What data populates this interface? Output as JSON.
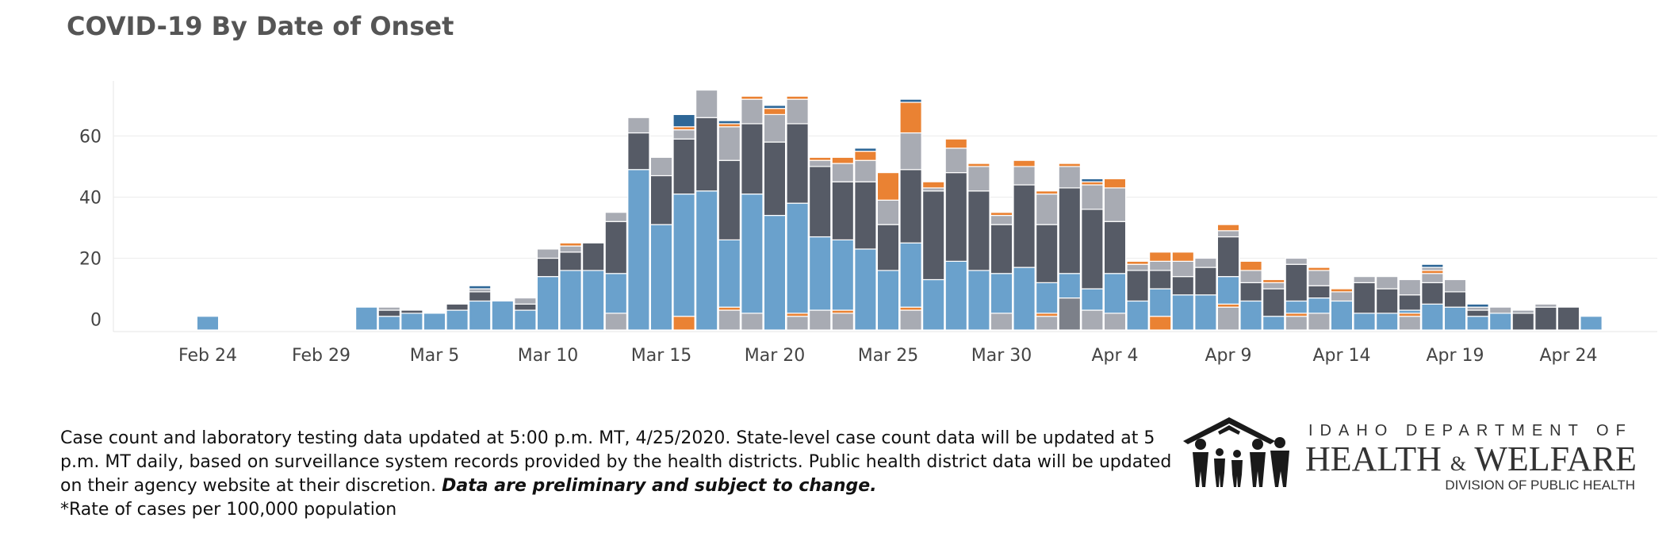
{
  "title": "COVID-19 By Date of Onset",
  "colors": {
    "blue_light": "#6aa1cc",
    "charcoal": "#565b66",
    "gray_light": "#a8abb3",
    "orange": "#ea8233",
    "blue_dark": "#2e6797",
    "gray_mid": "#7c8089"
  },
  "chart_data": {
    "type": "bar",
    "stacked": true,
    "title": "COVID-19 By Date of Onset",
    "xlabel": "",
    "ylabel": "",
    "ylim": [
      -4,
      78
    ],
    "grid": true,
    "yticks": [
      0,
      20,
      40,
      60
    ],
    "x_tick_labels": [
      "Feb 24",
      "Feb 29",
      "Mar 5",
      "Mar 10",
      "Mar 15",
      "Mar 20",
      "Mar 25",
      "Mar 30",
      "Apr 4",
      "Apr 9",
      "Apr 14",
      "Apr 19",
      "Apr 24"
    ],
    "start_date": "2020-02-20",
    "bars": [
      {
        "date": "2020-02-24",
        "segments": [
          [
            "blue_light",
            1
          ]
        ]
      },
      {
        "date": "2020-03-02",
        "segments": [
          [
            "blue_light",
            4
          ]
        ]
      },
      {
        "date": "2020-03-03",
        "segments": [
          [
            "blue_light",
            1
          ],
          [
            "charcoal",
            2
          ],
          [
            "gray_light",
            1
          ]
        ]
      },
      {
        "date": "2020-03-04",
        "segments": [
          [
            "blue_light",
            2
          ],
          [
            "charcoal",
            1
          ]
        ]
      },
      {
        "date": "2020-03-05",
        "segments": [
          [
            "blue_light",
            2
          ]
        ]
      },
      {
        "date": "2020-03-06",
        "segments": [
          [
            "blue_light",
            3
          ],
          [
            "charcoal",
            2
          ]
        ]
      },
      {
        "date": "2020-03-07",
        "segments": [
          [
            "blue_light",
            6
          ],
          [
            "charcoal",
            3
          ],
          [
            "gray_light",
            1
          ],
          [
            "blue_dark",
            1
          ]
        ]
      },
      {
        "date": "2020-03-08",
        "segments": [
          [
            "blue_light",
            6
          ]
        ]
      },
      {
        "date": "2020-03-09",
        "segments": [
          [
            "blue_light",
            3
          ],
          [
            "charcoal",
            2
          ],
          [
            "gray_light",
            2
          ]
        ]
      },
      {
        "date": "2020-03-10",
        "segments": [
          [
            "blue_light",
            14
          ],
          [
            "charcoal",
            6
          ],
          [
            "gray_light",
            3
          ]
        ]
      },
      {
        "date": "2020-03-11",
        "segments": [
          [
            "blue_light",
            16
          ],
          [
            "charcoal",
            6
          ],
          [
            "gray_light",
            2
          ],
          [
            "orange",
            1
          ]
        ]
      },
      {
        "date": "2020-03-12",
        "segments": [
          [
            "blue_light",
            16
          ],
          [
            "charcoal",
            9
          ]
        ]
      },
      {
        "date": "2020-03-13",
        "segments": [
          [
            "gray_light",
            2
          ],
          [
            "blue_light",
            13
          ],
          [
            "charcoal",
            17
          ],
          [
            "gray_light",
            3
          ]
        ]
      },
      {
        "date": "2020-03-14",
        "segments": [
          [
            "blue_light",
            49
          ],
          [
            "charcoal",
            12
          ],
          [
            "gray_light",
            5
          ]
        ]
      },
      {
        "date": "2020-03-15",
        "segments": [
          [
            "blue_light",
            31
          ],
          [
            "charcoal",
            16
          ],
          [
            "gray_light",
            6
          ]
        ]
      },
      {
        "date": "2020-03-16",
        "segments": [
          [
            "orange",
            1
          ],
          [
            "blue_light",
            40
          ],
          [
            "charcoal",
            18
          ],
          [
            "gray_light",
            3
          ],
          [
            "orange",
            1
          ],
          [
            "blue_dark",
            4
          ]
        ]
      },
      {
        "date": "2020-03-17",
        "segments": [
          [
            "blue_light",
            42
          ],
          [
            "charcoal",
            24
          ],
          [
            "gray_light",
            9
          ]
        ]
      },
      {
        "date": "2020-03-18",
        "segments": [
          [
            "gray_light",
            3
          ],
          [
            "orange",
            1
          ],
          [
            "blue_light",
            22
          ],
          [
            "charcoal",
            26
          ],
          [
            "gray_light",
            11
          ],
          [
            "orange",
            1
          ],
          [
            "blue_dark",
            1
          ]
        ]
      },
      {
        "date": "2020-03-19",
        "segments": [
          [
            "gray_light",
            2
          ],
          [
            "blue_light",
            39
          ],
          [
            "charcoal",
            23
          ],
          [
            "gray_light",
            8
          ],
          [
            "orange",
            1
          ]
        ]
      },
      {
        "date": "2020-03-20",
        "segments": [
          [
            "blue_light",
            34
          ],
          [
            "charcoal",
            24
          ],
          [
            "gray_light",
            9
          ],
          [
            "orange",
            2
          ],
          [
            "blue_dark",
            1
          ]
        ]
      },
      {
        "date": "2020-03-21",
        "segments": [
          [
            "gray_light",
            1
          ],
          [
            "orange",
            1
          ],
          [
            "blue_light",
            36
          ],
          [
            "charcoal",
            26
          ],
          [
            "gray_light",
            8
          ],
          [
            "orange",
            1
          ]
        ]
      },
      {
        "date": "2020-03-22",
        "segments": [
          [
            "gray_light",
            3
          ],
          [
            "blue_light",
            24
          ],
          [
            "charcoal",
            23
          ],
          [
            "gray_light",
            2
          ],
          [
            "orange",
            1
          ]
        ]
      },
      {
        "date": "2020-03-23",
        "segments": [
          [
            "gray_light",
            2
          ],
          [
            "orange",
            1
          ],
          [
            "blue_light",
            23
          ],
          [
            "charcoal",
            19
          ],
          [
            "gray_light",
            6
          ],
          [
            "orange",
            2
          ]
        ]
      },
      {
        "date": "2020-03-24",
        "segments": [
          [
            "blue_light",
            23
          ],
          [
            "charcoal",
            22
          ],
          [
            "gray_light",
            7
          ],
          [
            "orange",
            3
          ],
          [
            "blue_dark",
            1
          ]
        ]
      },
      {
        "date": "2020-03-25",
        "segments": [
          [
            "blue_light",
            16
          ],
          [
            "charcoal",
            15
          ],
          [
            "gray_light",
            8
          ],
          [
            "orange",
            9
          ]
        ]
      },
      {
        "date": "2020-03-26",
        "segments": [
          [
            "gray_light",
            3
          ],
          [
            "orange",
            1
          ],
          [
            "blue_light",
            21
          ],
          [
            "charcoal",
            24
          ],
          [
            "gray_light",
            12
          ],
          [
            "orange",
            10
          ],
          [
            "blue_dark",
            1
          ]
        ]
      },
      {
        "date": "2020-03-27",
        "segments": [
          [
            "blue_light",
            13
          ],
          [
            "charcoal",
            29
          ],
          [
            "gray_light",
            1
          ],
          [
            "orange",
            2
          ]
        ]
      },
      {
        "date": "2020-03-28",
        "segments": [
          [
            "blue_light",
            19
          ],
          [
            "charcoal",
            29
          ],
          [
            "gray_light",
            8
          ],
          [
            "orange",
            3
          ]
        ]
      },
      {
        "date": "2020-03-29",
        "segments": [
          [
            "blue_light",
            16
          ],
          [
            "charcoal",
            26
          ],
          [
            "gray_light",
            8
          ],
          [
            "orange",
            1
          ]
        ]
      },
      {
        "date": "2020-03-30",
        "segments": [
          [
            "gray_light",
            2
          ],
          [
            "blue_light",
            13
          ],
          [
            "charcoal",
            16
          ],
          [
            "gray_light",
            3
          ],
          [
            "orange",
            1
          ]
        ]
      },
      {
        "date": "2020-03-31",
        "segments": [
          [
            "blue_light",
            17
          ],
          [
            "charcoal",
            27
          ],
          [
            "gray_light",
            6
          ],
          [
            "orange",
            2
          ]
        ]
      },
      {
        "date": "2020-04-01",
        "segments": [
          [
            "gray_light",
            1
          ],
          [
            "orange",
            1
          ],
          [
            "blue_light",
            10
          ],
          [
            "charcoal",
            19
          ],
          [
            "gray_light",
            10
          ],
          [
            "orange",
            1
          ]
        ]
      },
      {
        "date": "2020-04-02",
        "segments": [
          [
            "gray_mid",
            7
          ],
          [
            "blue_light",
            8
          ],
          [
            "charcoal",
            28
          ],
          [
            "gray_light",
            7
          ],
          [
            "orange",
            1
          ]
        ]
      },
      {
        "date": "2020-04-03",
        "segments": [
          [
            "gray_light",
            3
          ],
          [
            "blue_light",
            7
          ],
          [
            "charcoal",
            26
          ],
          [
            "gray_light",
            8
          ],
          [
            "orange",
            1
          ],
          [
            "blue_dark",
            1
          ]
        ]
      },
      {
        "date": "2020-04-04",
        "segments": [
          [
            "gray_light",
            2
          ],
          [
            "blue_light",
            13
          ],
          [
            "charcoal",
            17
          ],
          [
            "gray_light",
            11
          ],
          [
            "orange",
            3
          ]
        ]
      },
      {
        "date": "2020-04-05",
        "segments": [
          [
            "blue_light",
            6
          ],
          [
            "charcoal",
            10
          ],
          [
            "gray_light",
            2
          ],
          [
            "orange",
            1
          ]
        ]
      },
      {
        "date": "2020-04-06",
        "segments": [
          [
            "orange",
            1
          ],
          [
            "blue_light",
            9
          ],
          [
            "charcoal",
            6
          ],
          [
            "gray_light",
            3
          ],
          [
            "orange",
            3
          ]
        ]
      },
      {
        "date": "2020-04-07",
        "segments": [
          [
            "blue_light",
            8
          ],
          [
            "charcoal",
            6
          ],
          [
            "gray_light",
            5
          ],
          [
            "orange",
            3
          ]
        ]
      },
      {
        "date": "2020-04-08",
        "segments": [
          [
            "blue_light",
            8
          ],
          [
            "charcoal",
            9
          ],
          [
            "gray_light",
            3
          ]
        ]
      },
      {
        "date": "2020-04-09",
        "segments": [
          [
            "gray_light",
            4
          ],
          [
            "orange",
            1
          ],
          [
            "blue_light",
            9
          ],
          [
            "charcoal",
            13
          ],
          [
            "gray_light",
            2
          ],
          [
            "orange",
            2
          ]
        ]
      },
      {
        "date": "2020-04-10",
        "segments": [
          [
            "blue_light",
            6
          ],
          [
            "charcoal",
            6
          ],
          [
            "gray_light",
            4
          ],
          [
            "orange",
            3
          ]
        ]
      },
      {
        "date": "2020-04-11",
        "segments": [
          [
            "blue_light",
            1
          ],
          [
            "charcoal",
            9
          ],
          [
            "gray_light",
            2
          ],
          [
            "orange",
            1
          ]
        ]
      },
      {
        "date": "2020-04-12",
        "segments": [
          [
            "gray_light",
            1
          ],
          [
            "orange",
            1
          ],
          [
            "blue_light",
            4
          ],
          [
            "charcoal",
            12
          ],
          [
            "gray_light",
            2
          ]
        ]
      },
      {
        "date": "2020-04-13",
        "segments": [
          [
            "gray_light",
            2
          ],
          [
            "blue_light",
            5
          ],
          [
            "charcoal",
            4
          ],
          [
            "gray_light",
            5
          ],
          [
            "orange",
            1
          ]
        ]
      },
      {
        "date": "2020-04-14",
        "segments": [
          [
            "blue_light",
            6
          ],
          [
            "gray_light",
            3
          ],
          [
            "orange",
            1
          ]
        ]
      },
      {
        "date": "2020-04-15",
        "segments": [
          [
            "blue_light",
            2
          ],
          [
            "charcoal",
            10
          ],
          [
            "gray_light",
            2
          ]
        ]
      },
      {
        "date": "2020-04-16",
        "segments": [
          [
            "blue_light",
            2
          ],
          [
            "charcoal",
            8
          ],
          [
            "gray_light",
            4
          ]
        ]
      },
      {
        "date": "2020-04-17",
        "segments": [
          [
            "gray_light",
            1
          ],
          [
            "orange",
            1
          ],
          [
            "blue_light",
            1
          ],
          [
            "charcoal",
            5
          ],
          [
            "gray_light",
            5
          ]
        ]
      },
      {
        "date": "2020-04-18",
        "segments": [
          [
            "blue_light",
            5
          ],
          [
            "charcoal",
            7
          ],
          [
            "gray_light",
            3
          ],
          [
            "orange",
            1
          ],
          [
            "gray_light",
            1
          ],
          [
            "blue_dark",
            1
          ]
        ]
      },
      {
        "date": "2020-04-19",
        "segments": [
          [
            "blue_light",
            4
          ],
          [
            "charcoal",
            5
          ],
          [
            "gray_light",
            4
          ]
        ]
      },
      {
        "date": "2020-04-20",
        "segments": [
          [
            "blue_light",
            1
          ],
          [
            "charcoal",
            2
          ],
          [
            "gray_light",
            1
          ],
          [
            "blue_dark",
            1
          ]
        ]
      },
      {
        "date": "2020-04-21",
        "segments": [
          [
            "blue_light",
            2
          ],
          [
            "gray_light",
            2
          ]
        ]
      },
      {
        "date": "2020-04-22",
        "segments": [
          [
            "charcoal",
            2
          ],
          [
            "gray_light",
            1
          ]
        ]
      },
      {
        "date": "2020-04-23",
        "segments": [
          [
            "charcoal",
            4
          ],
          [
            "gray_light",
            1
          ]
        ]
      },
      {
        "date": "2020-04-24",
        "segments": [
          [
            "charcoal",
            4
          ]
        ]
      },
      {
        "date": "2020-04-25",
        "segments": [
          [
            "blue_light",
            1
          ]
        ]
      }
    ]
  },
  "footnote": {
    "line_main": "Case count and laboratory testing data updated at 5:00 p.m. MT, 4/25/2020. State-level case count data will be updated at 5 p.m. MT daily, based on surveillance system records provided by the health districts. Public health district data will be updated on their agency website at their discretion. ",
    "emphasis": "Data are preliminary and subject to change.",
    "rate_note": "*Rate of cases per 100,000 population"
  },
  "logo": {
    "line1": "IDAHO DEPARTMENT OF",
    "health": "HEALTH",
    "amp": "&",
    "welfare": "WELFARE",
    "line3": "DIVISION OF PUBLIC HEALTH"
  }
}
